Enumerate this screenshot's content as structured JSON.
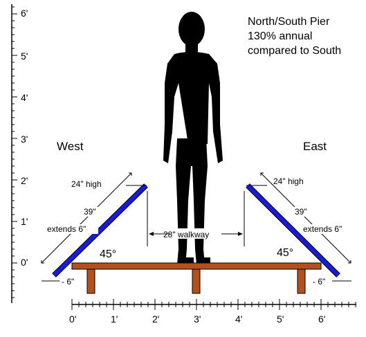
{
  "title": {
    "lines": [
      "North/South Pier",
      "130% annual",
      "compared to South"
    ]
  },
  "directions": {
    "west": "West",
    "east": "East"
  },
  "vertical_scale": {
    "labels": [
      "0'",
      "1'",
      "2'",
      "3'",
      "4'",
      "5'",
      "6'"
    ]
  },
  "horizontal_scale": {
    "labels": [
      "0'",
      "1'",
      "2'",
      "3'",
      "4'",
      "5'",
      "6'"
    ]
  },
  "annotations": {
    "west_height": "24\" high",
    "west_length": "39\"",
    "west_extends": "extends 6\"",
    "west_angle": "45°",
    "west_drop": "- 6\"",
    "east_height": "24\" high",
    "east_length": "39\"",
    "east_extends": "extends 6\"",
    "east_angle": "45°",
    "east_drop": "- 6\"",
    "walkway": "28\" walkway"
  },
  "colors": {
    "panel": "#1a1adb",
    "bench": "#b4501e",
    "figure": "#000000",
    "lines": "#000000"
  }
}
